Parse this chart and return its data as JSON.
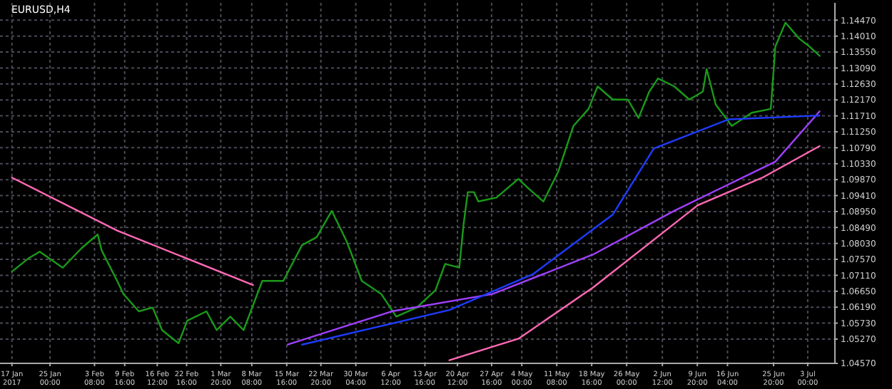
{
  "chart_data": {
    "type": "line",
    "title": "EURUSD,H4",
    "grid": true,
    "xlim": [
      "2017-01-14T12:00",
      "2017-07-08T17:00"
    ],
    "xticks": [
      {
        "value": "2017-01-17T00:00",
        "label": "17 Jan 2017"
      },
      {
        "value": "2017-01-25T00:00",
        "label": "25 Jan 00:00"
      },
      {
        "value": "2017-02-03T08:00",
        "label": "3 Feb 08:00"
      },
      {
        "value": "2017-02-09T16:00",
        "label": "9 Feb 16:00"
      },
      {
        "value": "2017-02-16T12:00",
        "label": "16 Feb 12:00"
      },
      {
        "value": "2017-02-22T16:00",
        "label": "22 Feb 16:00"
      },
      {
        "value": "2017-03-01T20:00",
        "label": "1 Mar 20:00"
      },
      {
        "value": "2017-03-08T08:00",
        "label": "8 Mar 08:00"
      },
      {
        "value": "2017-03-15T16:00",
        "label": "15 Mar 16:00"
      },
      {
        "value": "2017-03-22T20:00",
        "label": "22 Mar 20:00"
      },
      {
        "value": "2017-03-30T04:00",
        "label": "30 Mar 04:00"
      },
      {
        "value": "2017-04-06T12:00",
        "label": "6 Apr 12:00"
      },
      {
        "value": "2017-04-13T16:00",
        "label": "13 Apr 16:00"
      },
      {
        "value": "2017-04-20T12:00",
        "label": "20 Apr 12:00"
      },
      {
        "value": "2017-04-27T16:00",
        "label": "27 Apr 16:00"
      },
      {
        "value": "2017-05-04T00:00",
        "label": "4 May 00:00"
      },
      {
        "value": "2017-05-11T08:00",
        "label": "11 May 08:00"
      },
      {
        "value": "2017-05-18T16:00",
        "label": "18 May 16:00"
      },
      {
        "value": "2017-05-26T00:00",
        "label": "26 May 00:00"
      },
      {
        "value": "2017-06-02T12:00",
        "label": "2 Jun 12:00"
      },
      {
        "value": "2017-06-09T20:00",
        "label": "9 Jun 20:00"
      },
      {
        "value": "2017-06-16T04:00",
        "label": "16 Jun 04:00"
      },
      {
        "value": "2017-06-25T20:00",
        "label": "25 Jun 20:00"
      },
      {
        "value": "2017-07-03T00:00",
        "label": "3 Jul 00:00"
      }
    ],
    "ylim": [
      1.0457,
      1.1497
    ],
    "yticks": [
      {
        "value": 1.1447,
        "label": "1.14470"
      },
      {
        "value": 1.1401,
        "label": "1.14010"
      },
      {
        "value": 1.1355,
        "label": "1.13550"
      },
      {
        "value": 1.1309,
        "label": "1.13090"
      },
      {
        "value": 1.1263,
        "label": "1.12630"
      },
      {
        "value": 1.1217,
        "label": "1.12170"
      },
      {
        "value": 1.1171,
        "label": "1.11710"
      },
      {
        "value": 1.1125,
        "label": "1.11250"
      },
      {
        "value": 1.1079,
        "label": "1.10790"
      },
      {
        "value": 1.1033,
        "label": "1.10330"
      },
      {
        "value": 1.0987,
        "label": "1.09870"
      },
      {
        "value": 1.0941,
        "label": "1.09410"
      },
      {
        "value": 1.0895,
        "label": "1.08950"
      },
      {
        "value": 1.0849,
        "label": "1.08490"
      },
      {
        "value": 1.0803,
        "label": "1.08030"
      },
      {
        "value": 1.0757,
        "label": "1.07570"
      },
      {
        "value": 1.0711,
        "label": "1.07110"
      },
      {
        "value": 1.0665,
        "label": "1.06650"
      },
      {
        "value": 1.0619,
        "label": "1.06190"
      },
      {
        "value": 1.0573,
        "label": "1.05730"
      },
      {
        "value": 1.0527,
        "label": "1.05270"
      },
      {
        "value": 1.0457,
        "label": "1.04570"
      }
    ],
    "series": [
      {
        "color": "#1a9a1a",
        "x": [
          "2017-01-17T00:00",
          "2017-01-20T12:00",
          "2017-01-22T20:00",
          "2017-01-27T16:00",
          "2017-01-31T16:00",
          "2017-02-04T00:00",
          "2017-02-04T20:00",
          "2017-02-08T02:00",
          "2017-02-09T10:00",
          "2017-02-12T15:00",
          "2017-02-15T13:00",
          "2017-02-17T12:00",
          "2017-02-20T23:00",
          "2017-02-22T19:00",
          "2017-02-26T20:00",
          "2017-02-28T23:00",
          "2017-03-03T20:00",
          "2017-03-06T15:00",
          "2017-03-10T13:00",
          "2017-03-14T23:00",
          "2017-03-18T21:00",
          "2017-03-21T23:00",
          "2017-03-25T03:00",
          "2017-03-28T06:00",
          "2017-03-31T10:00",
          "2017-04-04T12:00",
          "2017-04-07T16:00",
          "2017-04-11T23:00",
          "2017-04-15T21:00",
          "2017-04-17T22:00",
          "2017-04-20T21:00",
          "2017-04-21T19:00",
          "2017-04-22T16:00",
          "2017-04-23T23:00",
          "2017-04-24T21:00",
          "2017-04-28T16:00",
          "2017-05-03T07:00",
          "2017-05-05T09:00",
          "2017-05-08T13:00",
          "2017-05-11T17:00",
          "2017-05-14T20:00",
          "2017-05-18T00:00",
          "2017-05-19T22:00",
          "2017-05-23T02:00",
          "2017-05-26T06:00",
          "2017-05-28T12:00",
          "2017-05-30T18:00",
          "2017-06-01T14:00",
          "2017-06-05T00:00",
          "2017-06-08T04:00",
          "2017-06-11T00:00",
          "2017-06-11T19:00",
          "2017-06-13T17:00",
          "2017-06-17T02:00",
          "2017-06-21T06:00",
          "2017-06-25T06:00",
          "2017-06-26T05:00",
          "2017-06-28T08:00",
          "2017-07-01T05:00",
          "2017-07-03T09:00",
          "2017-07-05T12:00"
        ],
        "values": [
          1.0722,
          1.076,
          1.0779,
          1.0733,
          1.079,
          1.0829,
          1.0783,
          1.0695,
          1.0657,
          1.0607,
          1.0618,
          1.0553,
          1.0515,
          1.058,
          1.0607,
          1.0553,
          1.0592,
          1.0553,
          1.0695,
          1.0695,
          1.0798,
          1.0821,
          1.0897,
          1.0809,
          1.0695,
          1.0657,
          1.0592,
          1.0618,
          1.0668,
          1.0744,
          1.0733,
          1.0859,
          1.0951,
          1.0951,
          1.0924,
          1.0935,
          1.0989,
          1.0962,
          1.0924,
          1.1012,
          1.1142,
          1.1191,
          1.1256,
          1.1218,
          1.1218,
          1.1165,
          1.1241,
          1.1279,
          1.1256,
          1.1218,
          1.1241,
          1.1306,
          1.1203,
          1.1142,
          1.118,
          1.1191,
          1.1371,
          1.144,
          1.1394,
          1.1371,
          1.1344
        ]
      },
      {
        "color": "#ff69b4",
        "x": [
          "2017-01-17T00:00",
          "2017-02-08T02:00",
          "2017-03-08T15:00",
          "2017-03-12T00:00",
          "2017-04-18T19:00",
          "2017-05-03T07:00",
          "2017-05-18T23:00",
          "2017-06-09T22:00",
          "2017-06-23T16:00",
          "2017-07-05T12:00"
        ],
        "values": [
          1.0993,
          1.084,
          1.0683,
          null,
          1.0466,
          1.0528,
          1.0676,
          1.0913,
          1.0994,
          1.1084
        ]
      },
      {
        "color": "#a040ff",
        "x": [
          "2017-03-15T21:00",
          "2017-04-06T17:00",
          "2017-04-27T21:00",
          "2017-05-18T23:00",
          "2017-06-05T00:00",
          "2017-06-26T05:00",
          "2017-07-05T12:00"
        ],
        "values": [
          1.0511,
          1.0607,
          1.0657,
          1.0771,
          1.0897,
          1.1039,
          1.1184
        ]
      },
      {
        "color": "#1e3cff",
        "x": [
          "2017-03-18T21:00",
          "2017-04-18T19:00",
          "2017-05-06T08:00",
          "2017-05-23T02:00",
          "2017-05-31T17:00",
          "2017-06-16T11:00",
          "2017-07-05T12:00"
        ],
        "values": [
          1.0511,
          1.0611,
          1.0714,
          1.0886,
          1.1077,
          1.1161,
          1.1172
        ]
      }
    ]
  }
}
